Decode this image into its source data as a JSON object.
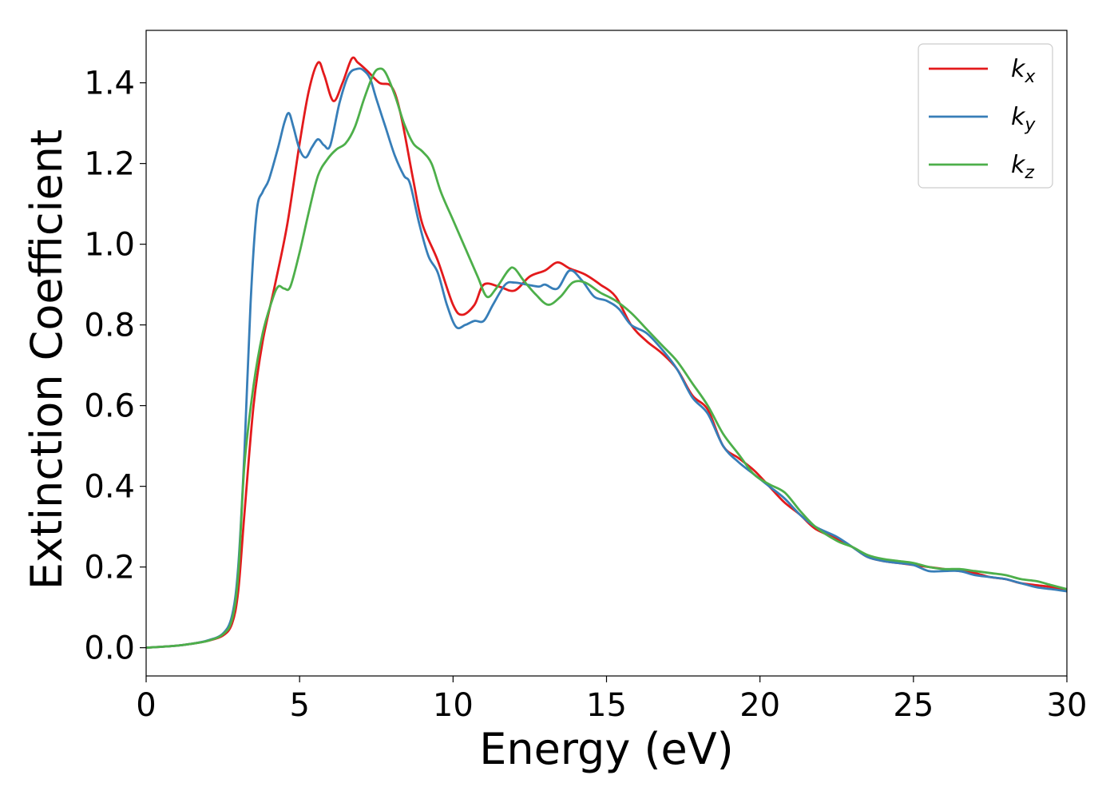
{
  "chart_data": {
    "type": "line",
    "xlabel": "Energy (eV)",
    "ylabel": "Extinction Coefficient",
    "xlim": [
      0,
      30
    ],
    "ylim": [
      -0.07,
      1.53
    ],
    "xticks": [
      0,
      5,
      10,
      15,
      20,
      25,
      30
    ],
    "xtick_labels": [
      "0",
      "5",
      "10",
      "15",
      "20",
      "25",
      "30"
    ],
    "yticks": [
      0.0,
      0.2,
      0.4,
      0.6,
      0.8,
      1.0,
      1.2,
      1.4
    ],
    "ytick_labels": [
      "0.0",
      "0.2",
      "0.4",
      "0.6",
      "0.8",
      "1.0",
      "1.2",
      "1.4"
    ],
    "grid": false,
    "legend_position": "top-right",
    "series": [
      {
        "name": "k",
        "subscript": "x",
        "color": "#e31a1c",
        "points": [
          [
            0,
            0.0
          ],
          [
            1,
            0.005
          ],
          [
            1.5,
            0.01
          ],
          [
            2,
            0.017
          ],
          [
            2.5,
            0.03
          ],
          [
            2.8,
            0.06
          ],
          [
            3.0,
            0.14
          ],
          [
            3.2,
            0.33
          ],
          [
            3.5,
            0.6
          ],
          [
            3.8,
            0.76
          ],
          [
            4.2,
            0.9
          ],
          [
            4.6,
            1.05
          ],
          [
            5.0,
            1.25
          ],
          [
            5.3,
            1.38
          ],
          [
            5.6,
            1.45
          ],
          [
            5.8,
            1.42
          ],
          [
            6.1,
            1.355
          ],
          [
            6.4,
            1.4
          ],
          [
            6.7,
            1.46
          ],
          [
            6.9,
            1.45
          ],
          [
            7.2,
            1.43
          ],
          [
            7.6,
            1.4
          ],
          [
            8.0,
            1.39
          ],
          [
            8.3,
            1.32
          ],
          [
            8.7,
            1.16
          ],
          [
            9.0,
            1.05
          ],
          [
            9.5,
            0.96
          ],
          [
            10.0,
            0.85
          ],
          [
            10.3,
            0.825
          ],
          [
            10.7,
            0.85
          ],
          [
            11.0,
            0.9
          ],
          [
            11.5,
            0.895
          ],
          [
            12.0,
            0.885
          ],
          [
            12.5,
            0.92
          ],
          [
            13.0,
            0.935
          ],
          [
            13.4,
            0.955
          ],
          [
            13.8,
            0.94
          ],
          [
            14.3,
            0.925
          ],
          [
            14.8,
            0.9
          ],
          [
            15.3,
            0.87
          ],
          [
            15.8,
            0.8
          ],
          [
            16.3,
            0.76
          ],
          [
            16.8,
            0.73
          ],
          [
            17.3,
            0.69
          ],
          [
            17.8,
            0.625
          ],
          [
            18.3,
            0.59
          ],
          [
            18.8,
            0.5
          ],
          [
            19.3,
            0.47
          ],
          [
            19.8,
            0.44
          ],
          [
            20.3,
            0.4
          ],
          [
            20.8,
            0.36
          ],
          [
            21.3,
            0.33
          ],
          [
            21.8,
            0.295
          ],
          [
            22.5,
            0.27
          ],
          [
            23.0,
            0.25
          ],
          [
            23.5,
            0.225
          ],
          [
            24.0,
            0.215
          ],
          [
            24.5,
            0.21
          ],
          [
            25.0,
            0.205
          ],
          [
            25.5,
            0.2
          ],
          [
            26.0,
            0.195
          ],
          [
            26.5,
            0.19
          ],
          [
            27.0,
            0.185
          ],
          [
            27.5,
            0.175
          ],
          [
            28.0,
            0.17
          ],
          [
            28.5,
            0.16
          ],
          [
            29.0,
            0.155
          ],
          [
            29.5,
            0.15
          ],
          [
            30.0,
            0.14
          ]
        ]
      },
      {
        "name": "k",
        "subscript": "y",
        "color": "#377eb8",
        "points": [
          [
            0,
            0.0
          ],
          [
            1,
            0.005
          ],
          [
            1.5,
            0.01
          ],
          [
            2,
            0.018
          ],
          [
            2.5,
            0.035
          ],
          [
            2.8,
            0.08
          ],
          [
            3.0,
            0.2
          ],
          [
            3.2,
            0.48
          ],
          [
            3.4,
            0.85
          ],
          [
            3.6,
            1.08
          ],
          [
            3.8,
            1.13
          ],
          [
            4.0,
            1.16
          ],
          [
            4.3,
            1.24
          ],
          [
            4.5,
            1.3
          ],
          [
            4.65,
            1.325
          ],
          [
            4.8,
            1.29
          ],
          [
            5.0,
            1.235
          ],
          [
            5.2,
            1.215
          ],
          [
            5.4,
            1.24
          ],
          [
            5.6,
            1.26
          ],
          [
            5.8,
            1.245
          ],
          [
            6.0,
            1.245
          ],
          [
            6.3,
            1.35
          ],
          [
            6.6,
            1.42
          ],
          [
            6.9,
            1.435
          ],
          [
            7.1,
            1.43
          ],
          [
            7.3,
            1.41
          ],
          [
            7.5,
            1.36
          ],
          [
            7.8,
            1.29
          ],
          [
            8.1,
            1.22
          ],
          [
            8.4,
            1.17
          ],
          [
            8.6,
            1.15
          ],
          [
            8.9,
            1.05
          ],
          [
            9.2,
            0.97
          ],
          [
            9.5,
            0.93
          ],
          [
            9.8,
            0.85
          ],
          [
            10.1,
            0.795
          ],
          [
            10.4,
            0.8
          ],
          [
            10.7,
            0.81
          ],
          [
            11.0,
            0.81
          ],
          [
            11.3,
            0.85
          ],
          [
            11.7,
            0.9
          ],
          [
            12.0,
            0.905
          ],
          [
            12.4,
            0.9
          ],
          [
            12.8,
            0.895
          ],
          [
            13.0,
            0.9
          ],
          [
            13.4,
            0.89
          ],
          [
            13.8,
            0.935
          ],
          [
            14.2,
            0.91
          ],
          [
            14.6,
            0.87
          ],
          [
            15.0,
            0.86
          ],
          [
            15.4,
            0.84
          ],
          [
            15.8,
            0.8
          ],
          [
            16.3,
            0.78
          ],
          [
            16.8,
            0.74
          ],
          [
            17.3,
            0.69
          ],
          [
            17.8,
            0.62
          ],
          [
            18.3,
            0.58
          ],
          [
            18.8,
            0.5
          ],
          [
            19.3,
            0.46
          ],
          [
            19.8,
            0.43
          ],
          [
            20.3,
            0.4
          ],
          [
            20.8,
            0.37
          ],
          [
            21.3,
            0.33
          ],
          [
            21.8,
            0.3
          ],
          [
            22.5,
            0.275
          ],
          [
            23.0,
            0.25
          ],
          [
            23.5,
            0.225
          ],
          [
            24.0,
            0.215
          ],
          [
            24.5,
            0.21
          ],
          [
            25.0,
            0.205
          ],
          [
            25.5,
            0.19
          ],
          [
            26.0,
            0.19
          ],
          [
            26.5,
            0.19
          ],
          [
            27.0,
            0.18
          ],
          [
            27.5,
            0.175
          ],
          [
            28.0,
            0.17
          ],
          [
            28.5,
            0.16
          ],
          [
            29.0,
            0.15
          ],
          [
            29.5,
            0.145
          ],
          [
            30.0,
            0.14
          ]
        ]
      },
      {
        "name": "k",
        "subscript": "z",
        "color": "#4daf4a",
        "points": [
          [
            0,
            0.0
          ],
          [
            1,
            0.005
          ],
          [
            1.5,
            0.01
          ],
          [
            2,
            0.017
          ],
          [
            2.5,
            0.033
          ],
          [
            2.8,
            0.07
          ],
          [
            3.0,
            0.18
          ],
          [
            3.2,
            0.45
          ],
          [
            3.5,
            0.65
          ],
          [
            3.8,
            0.78
          ],
          [
            4.1,
            0.86
          ],
          [
            4.3,
            0.895
          ],
          [
            4.5,
            0.89
          ],
          [
            4.7,
            0.895
          ],
          [
            5.0,
            0.98
          ],
          [
            5.3,
            1.08
          ],
          [
            5.6,
            1.17
          ],
          [
            5.9,
            1.21
          ],
          [
            6.2,
            1.235
          ],
          [
            6.5,
            1.25
          ],
          [
            6.8,
            1.29
          ],
          [
            7.1,
            1.36
          ],
          [
            7.4,
            1.42
          ],
          [
            7.6,
            1.435
          ],
          [
            7.8,
            1.425
          ],
          [
            8.1,
            1.37
          ],
          [
            8.4,
            1.3
          ],
          [
            8.7,
            1.25
          ],
          [
            9.0,
            1.23
          ],
          [
            9.3,
            1.2
          ],
          [
            9.6,
            1.13
          ],
          [
            10.0,
            1.06
          ],
          [
            10.4,
            0.99
          ],
          [
            10.8,
            0.92
          ],
          [
            11.1,
            0.87
          ],
          [
            11.4,
            0.89
          ],
          [
            11.8,
            0.935
          ],
          [
            12.0,
            0.94
          ],
          [
            12.3,
            0.91
          ],
          [
            12.7,
            0.875
          ],
          [
            13.1,
            0.85
          ],
          [
            13.5,
            0.87
          ],
          [
            13.9,
            0.905
          ],
          [
            14.3,
            0.905
          ],
          [
            14.8,
            0.88
          ],
          [
            15.3,
            0.86
          ],
          [
            15.8,
            0.83
          ],
          [
            16.3,
            0.79
          ],
          [
            16.8,
            0.75
          ],
          [
            17.3,
            0.71
          ],
          [
            17.8,
            0.655
          ],
          [
            18.3,
            0.6
          ],
          [
            18.8,
            0.53
          ],
          [
            19.3,
            0.48
          ],
          [
            19.8,
            0.43
          ],
          [
            20.3,
            0.405
          ],
          [
            20.8,
            0.385
          ],
          [
            21.3,
            0.34
          ],
          [
            21.8,
            0.3
          ],
          [
            22.5,
            0.265
          ],
          [
            23.0,
            0.25
          ],
          [
            23.5,
            0.23
          ],
          [
            24.0,
            0.22
          ],
          [
            24.5,
            0.215
          ],
          [
            25.0,
            0.21
          ],
          [
            25.5,
            0.2
          ],
          [
            26.0,
            0.195
          ],
          [
            26.5,
            0.195
          ],
          [
            27.0,
            0.19
          ],
          [
            27.5,
            0.185
          ],
          [
            28.0,
            0.18
          ],
          [
            28.5,
            0.17
          ],
          [
            29.0,
            0.165
          ],
          [
            29.5,
            0.155
          ],
          [
            30.0,
            0.145
          ]
        ]
      }
    ]
  }
}
